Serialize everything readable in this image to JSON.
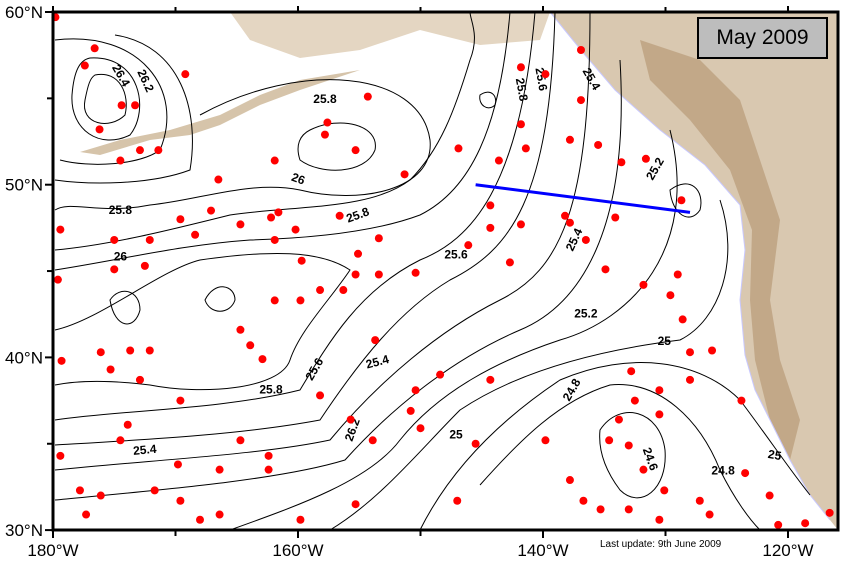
{
  "title": "May 2009",
  "last_update": "Last update: 9th June 2009",
  "colors": {
    "float": "#ff0000",
    "transect": "#0000ff",
    "land": "#d9c8b0",
    "land_dark": "#b89a78",
    "coast": "#c8c8ff"
  },
  "axes": {
    "x_ticks": [
      {
        "lon": -180,
        "label": "180°W"
      },
      {
        "lon": -160,
        "label": "160°W"
      },
      {
        "lon": -140,
        "label": "140°W"
      },
      {
        "lon": -120,
        "label": "120°W"
      }
    ],
    "y_ticks": [
      {
        "lat": 60,
        "label": "60°N"
      },
      {
        "lat": 50,
        "label": "50°N"
      },
      {
        "lat": 40,
        "label": "40°N"
      },
      {
        "lat": 30,
        "label": "30°N"
      }
    ],
    "lon_range": [
      -180,
      -115.5
    ],
    "lat_range": [
      30,
      60
    ]
  },
  "transect": [
    [
      -145.5,
      50.0
    ],
    [
      -128.0,
      48.4
    ]
  ],
  "contour_labels": [
    {
      "t": "26.4",
      "lon": -174.5,
      "lat": 56.3,
      "rot": 60
    },
    {
      "t": "26.2",
      "lon": -172.5,
      "lat": 56.0,
      "rot": 65
    },
    {
      "t": "25.8",
      "lon": -157.8,
      "lat": 54.9,
      "rot": 0
    },
    {
      "t": "26",
      "lon": -160.0,
      "lat": 50.3,
      "rot": 20
    },
    {
      "t": "25.8",
      "lon": -174.5,
      "lat": 48.5,
      "rot": 0
    },
    {
      "t": "26",
      "lon": -174.5,
      "lat": 45.8,
      "rot": 0
    },
    {
      "t": "25.8",
      "lon": -155.1,
      "lat": 48.2,
      "rot": -20
    },
    {
      "t": "25.6",
      "lon": -147.1,
      "lat": 45.9,
      "rot": 0
    },
    {
      "t": "25.8",
      "lon": -141.8,
      "lat": 55.5,
      "rot": 80
    },
    {
      "t": "25.6",
      "lon": -140.2,
      "lat": 56.1,
      "rot": 80
    },
    {
      "t": "25.4",
      "lon": -136.1,
      "lat": 56.1,
      "rot": 60
    },
    {
      "t": "25.2",
      "lon": -130.8,
      "lat": 50.9,
      "rot": -60
    },
    {
      "t": "25.4",
      "lon": -137.4,
      "lat": 46.8,
      "rot": -65
    },
    {
      "t": "25.2",
      "lon": -136.5,
      "lat": 42.5,
      "rot": 0
    },
    {
      "t": "25",
      "lon": -130.1,
      "lat": 40.9,
      "rot": 0
    },
    {
      "t": "25.4",
      "lon": -153.5,
      "lat": 39.7,
      "rot": -15
    },
    {
      "t": "25.6",
      "lon": -158.6,
      "lat": 39.3,
      "rot": -60
    },
    {
      "t": "25.8",
      "lon": -162.2,
      "lat": 38.1,
      "rot": 0
    },
    {
      "t": "26.2",
      "lon": -155.5,
      "lat": 35.8,
      "rot": -70
    },
    {
      "t": "25.4",
      "lon": -172.5,
      "lat": 34.6,
      "rot": -5
    },
    {
      "t": "25",
      "lon": -147.1,
      "lat": 35.5,
      "rot": 0
    },
    {
      "t": "24.8",
      "lon": -137.6,
      "lat": 38.1,
      "rot": -60
    },
    {
      "t": "24.6",
      "lon": -131.3,
      "lat": 34.1,
      "rot": 70
    },
    {
      "t": "24.8",
      "lon": -125.3,
      "lat": 33.4,
      "rot": 0
    },
    {
      "t": "25",
      "lon": -121.1,
      "lat": 34.3,
      "rot": 10
    }
  ],
  "floats": [
    [
      -179.8,
      59.7
    ],
    [
      -176.6,
      57.9
    ],
    [
      -177.4,
      56.9
    ],
    [
      -174.4,
      54.6
    ],
    [
      -173.3,
      54.6
    ],
    [
      -176.2,
      53.2
    ],
    [
      -172.9,
      52.0
    ],
    [
      -174.5,
      51.4
    ],
    [
      -171.4,
      52.0
    ],
    [
      -169.2,
      56.4
    ],
    [
      -166.5,
      50.3
    ],
    [
      -161.9,
      51.4
    ],
    [
      -157.8,
      52.9
    ],
    [
      -155.3,
      52.0
    ],
    [
      -154.3,
      55.1
    ],
    [
      -157.6,
      53.6
    ],
    [
      -146.9,
      52.1
    ],
    [
      -143.6,
      51.4
    ],
    [
      -141.8,
      53.5
    ],
    [
      -141.4,
      52.1
    ],
    [
      -141.8,
      56.8
    ],
    [
      -139.8,
      56.4
    ],
    [
      -136.9,
      54.9
    ],
    [
      -135.5,
      52.3
    ],
    [
      -137.8,
      52.6
    ],
    [
      -136.9,
      57.8
    ],
    [
      -133.6,
      51.3
    ],
    [
      -131.6,
      51.5
    ],
    [
      -128.7,
      49.1
    ],
    [
      -141.8,
      47.7
    ],
    [
      -144.3,
      48.8
    ],
    [
      -146.1,
      46.5
    ],
    [
      -144.3,
      47.5
    ],
    [
      -138.2,
      48.2
    ],
    [
      -137.8,
      47.8
    ],
    [
      -142.7,
      45.5
    ],
    [
      -134.1,
      48.1
    ],
    [
      -136.5,
      46.8
    ],
    [
      -134.9,
      45.1
    ],
    [
      -131.8,
      44.2
    ],
    [
      -129.6,
      43.6
    ],
    [
      -129.0,
      44.8
    ],
    [
      -128.6,
      42.2
    ],
    [
      -128.0,
      40.3
    ],
    [
      -126.2,
      40.4
    ],
    [
      -128.0,
      38.7
    ],
    [
      -130.5,
      38.1
    ],
    [
      -132.8,
      39.2
    ],
    [
      -132.5,
      37.5
    ],
    [
      -133.8,
      36.4
    ],
    [
      -134.6,
      35.2
    ],
    [
      -133.0,
      34.9
    ],
    [
      -130.5,
      36.7
    ],
    [
      -131.8,
      33.5
    ],
    [
      -130.1,
      32.3
    ],
    [
      -127.2,
      31.7
    ],
    [
      -126.4,
      30.9
    ],
    [
      -123.5,
      33.3
    ],
    [
      -123.8,
      37.5
    ],
    [
      -121.5,
      32.0
    ],
    [
      -120.8,
      30.3
    ],
    [
      -118.6,
      30.4
    ],
    [
      -116.6,
      31.0
    ],
    [
      -130.5,
      30.6
    ],
    [
      -133.0,
      31.2
    ],
    [
      -139.8,
      35.2
    ],
    [
      -137.8,
      32.9
    ],
    [
      -136.7,
      31.7
    ],
    [
      -135.3,
      31.2
    ],
    [
      -147.0,
      31.7
    ],
    [
      -145.5,
      35.0
    ],
    [
      -144.3,
      38.7
    ],
    [
      -148.4,
      39.0
    ],
    [
      -150.4,
      38.1
    ],
    [
      -150.8,
      36.9
    ],
    [
      -150.0,
      35.9
    ],
    [
      -153.9,
      35.2
    ],
    [
      -155.3,
      31.5
    ],
    [
      -155.7,
      36.4
    ],
    [
      -158.2,
      37.8
    ],
    [
      -159.8,
      30.6
    ],
    [
      -162.4,
      34.3
    ],
    [
      -162.4,
      33.5
    ],
    [
      -164.7,
      35.2
    ],
    [
      -166.4,
      33.5
    ],
    [
      -169.6,
      31.7
    ],
    [
      -169.8,
      33.8
    ],
    [
      -171.7,
      32.3
    ],
    [
      -174.5,
      35.2
    ],
    [
      -173.9,
      36.1
    ],
    [
      -172.9,
      38.7
    ],
    [
      -175.3,
      39.3
    ],
    [
      -176.1,
      40.3
    ],
    [
      -179.3,
      39.8
    ],
    [
      -179.4,
      34.3
    ],
    [
      -177.8,
      32.3
    ],
    [
      -176.1,
      32.0
    ],
    [
      -177.3,
      30.9
    ],
    [
      -168.0,
      30.6
    ],
    [
      -166.4,
      30.9
    ],
    [
      -169.6,
      37.5
    ],
    [
      -172.1,
      40.4
    ],
    [
      -173.7,
      40.4
    ],
    [
      -172.5,
      45.3
    ],
    [
      -175.0,
      45.1
    ],
    [
      -175.0,
      46.8
    ],
    [
      -172.1,
      46.8
    ],
    [
      -169.6,
      48.0
    ],
    [
      -168.4,
      47.1
    ],
    [
      -167.1,
      48.5
    ],
    [
      -164.7,
      47.7
    ],
    [
      -162.2,
      48.1
    ],
    [
      -161.9,
      46.8
    ],
    [
      -160.2,
      47.4
    ],
    [
      -161.6,
      48.4
    ],
    [
      -163.9,
      40.7
    ],
    [
      -162.9,
      39.9
    ],
    [
      -164.7,
      41.6
    ],
    [
      -159.8,
      43.3
    ],
    [
      -161.9,
      43.3
    ],
    [
      -158.2,
      43.9
    ],
    [
      -156.3,
      43.9
    ],
    [
      -155.3,
      44.8
    ],
    [
      -156.6,
      48.2
    ],
    [
      -153.4,
      46.9
    ],
    [
      -155.1,
      46.0
    ],
    [
      -153.4,
      44.8
    ],
    [
      -150.4,
      44.9
    ],
    [
      -153.7,
      41.0
    ],
    [
      -151.3,
      50.6
    ],
    [
      -159.7,
      45.6
    ],
    [
      -179.4,
      47.4
    ],
    [
      -179.6,
      44.5
    ]
  ]
}
